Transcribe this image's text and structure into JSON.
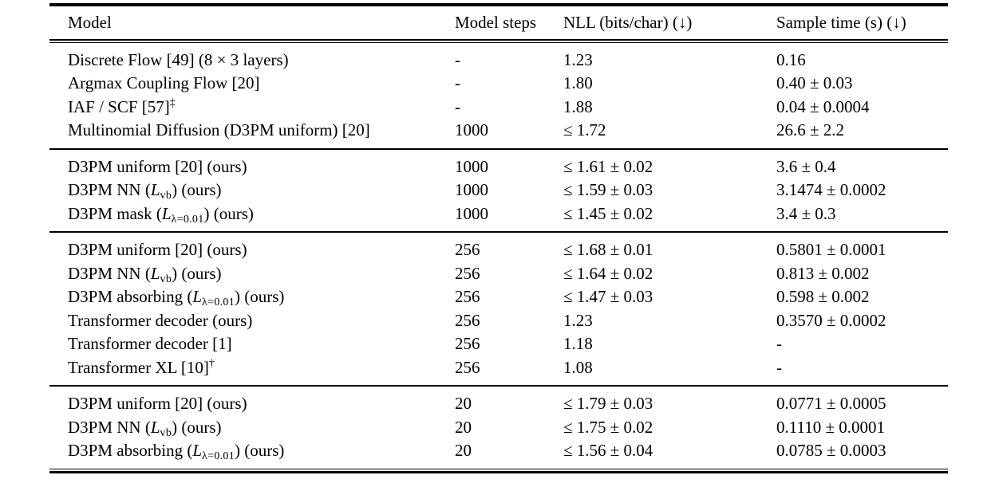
{
  "colors": {
    "text": "#000000",
    "background": "#ffffff",
    "rule": "#000000"
  },
  "table": {
    "columns": [
      "Model",
      "Model steps",
      "NLL (bits/char) (↓)",
      "Sample time (s) (↓)"
    ],
    "groups": [
      {
        "rows": [
          {
            "model": [
              [
                "t",
                "Discrete Flow [49] (8 × 3 layers)"
              ]
            ],
            "steps": "-",
            "nll": "1.23",
            "sample_time": "0.16"
          },
          {
            "model": [
              [
                "t",
                "Argmax Coupling Flow [20]"
              ]
            ],
            "steps": "-",
            "nll": "1.80",
            "sample_time": "0.40 ± 0.03"
          },
          {
            "model": [
              [
                "t",
                "IAF / SCF [57]"
              ],
              [
                "sup",
                "‡"
              ]
            ],
            "steps": "-",
            "nll": "1.88",
            "sample_time": "0.04 ± 0.0004"
          },
          {
            "model": [
              [
                "t",
                "Multinomial Diffusion (D3PM uniform) [20]"
              ]
            ],
            "steps": "1000",
            "nll": "≤ 1.72",
            "sample_time": "26.6 ± 2.2"
          }
        ]
      },
      {
        "rows": [
          {
            "model": [
              [
                "t",
                "D3PM uniform [20] (ours)"
              ]
            ],
            "steps": "1000",
            "nll": "≤ 1.61 ± 0.02",
            "sample_time": "3.6 ± 0.4"
          },
          {
            "model": [
              [
                "t",
                "D3PM NN ("
              ],
              [
                "i",
                "L"
              ],
              [
                "sub",
                "vb"
              ],
              [
                "t",
                ") (ours)"
              ]
            ],
            "steps": "1000",
            "nll": "≤ 1.59 ± 0.03",
            "sample_time": "3.1474 ± 0.0002"
          },
          {
            "model": [
              [
                "t",
                "D3PM mask ("
              ],
              [
                "i",
                "L"
              ],
              [
                "sub",
                "λ=0.01"
              ],
              [
                "t",
                ") (ours)"
              ]
            ],
            "steps": "1000",
            "nll": "≤ 1.45 ± 0.02",
            "sample_time": "3.4 ± 0.3"
          }
        ]
      },
      {
        "rows": [
          {
            "model": [
              [
                "t",
                "D3PM uniform [20] (ours)"
              ]
            ],
            "steps": "256",
            "nll": "≤ 1.68 ± 0.01",
            "sample_time": "0.5801 ± 0.0001"
          },
          {
            "model": [
              [
                "t",
                "D3PM NN ("
              ],
              [
                "i",
                "L"
              ],
              [
                "sub",
                "vb"
              ],
              [
                "t",
                ") (ours)"
              ]
            ],
            "steps": "256",
            "nll": "≤ 1.64 ± 0.02",
            "sample_time": "0.813 ± 0.002"
          },
          {
            "model": [
              [
                "t",
                "D3PM absorbing ("
              ],
              [
                "i",
                "L"
              ],
              [
                "sub",
                "λ=0.01"
              ],
              [
                "t",
                ") (ours)"
              ]
            ],
            "steps": "256",
            "nll": "≤ 1.47 ± 0.03",
            "sample_time": "0.598 ± 0.002"
          },
          {
            "model": [
              [
                "t",
                "Transformer decoder (ours)"
              ]
            ],
            "steps": "256",
            "nll": "1.23",
            "sample_time": "0.3570 ± 0.0002"
          },
          {
            "model": [
              [
                "t",
                "Transformer decoder [1]"
              ]
            ],
            "steps": "256",
            "nll": "1.18",
            "sample_time": "-"
          },
          {
            "model": [
              [
                "t",
                "Transformer XL [10]"
              ],
              [
                "sup",
                "†"
              ]
            ],
            "steps": "256",
            "nll": "1.08",
            "sample_time": "-"
          }
        ]
      },
      {
        "rows": [
          {
            "model": [
              [
                "t",
                "D3PM uniform [20] (ours)"
              ]
            ],
            "steps": "20",
            "nll": "≤ 1.79 ± 0.03",
            "sample_time": "0.0771 ± 0.0005"
          },
          {
            "model": [
              [
                "t",
                "D3PM NN ("
              ],
              [
                "i",
                "L"
              ],
              [
                "sub",
                "vb"
              ],
              [
                "t",
                ") (ours)"
              ]
            ],
            "steps": "20",
            "nll": "≤ 1.75 ± 0.02",
            "sample_time": "0.1110 ± 0.0001"
          },
          {
            "model": [
              [
                "t",
                "D3PM absorbing ("
              ],
              [
                "i",
                "L"
              ],
              [
                "sub",
                "λ=0.01"
              ],
              [
                "t",
                ") (ours)"
              ]
            ],
            "steps": "20",
            "nll": "≤ 1.56 ± 0.04",
            "sample_time": "0.0785 ± 0.0003"
          }
        ]
      }
    ]
  }
}
